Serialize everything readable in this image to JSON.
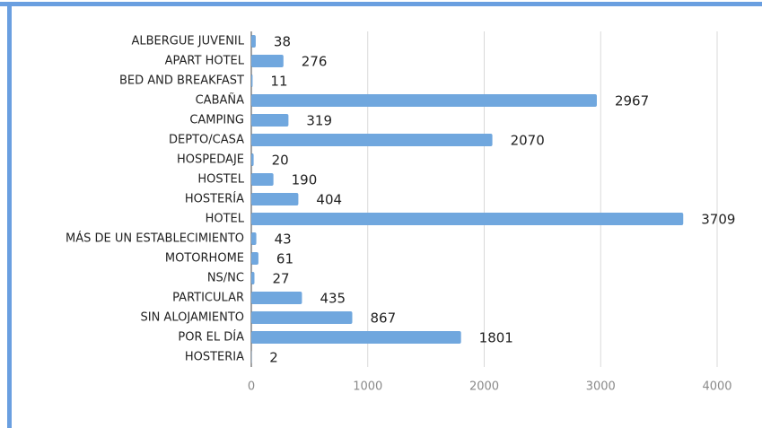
{
  "chart_data": {
    "type": "bar",
    "orientation": "horizontal",
    "categories": [
      "ALBERGUE JUVENIL",
      "APART HOTEL",
      "BED AND BREAKFAST",
      "CABAÑA",
      "CAMPING",
      "DEPTO/CASA",
      "HOSPEDAJE",
      "HOSTEL",
      "HOSTERÍA",
      "HOTEL",
      "MÁS DE UN ESTABLECIMIENTO",
      "MOTORHOME",
      "NS/NC",
      "PARTICULAR",
      "SIN ALOJAMIENTO",
      "POR EL DÍA",
      "HOSTERIA"
    ],
    "values": [
      38,
      276,
      11,
      2967,
      319,
      2070,
      20,
      190,
      404,
      3709,
      43,
      61,
      27,
      435,
      867,
      1801,
      2
    ],
    "color": "#70a7de",
    "xlim": [
      0,
      4000
    ],
    "xticks": [
      0,
      1000,
      2000,
      3000,
      4000
    ],
    "grid": true
  }
}
